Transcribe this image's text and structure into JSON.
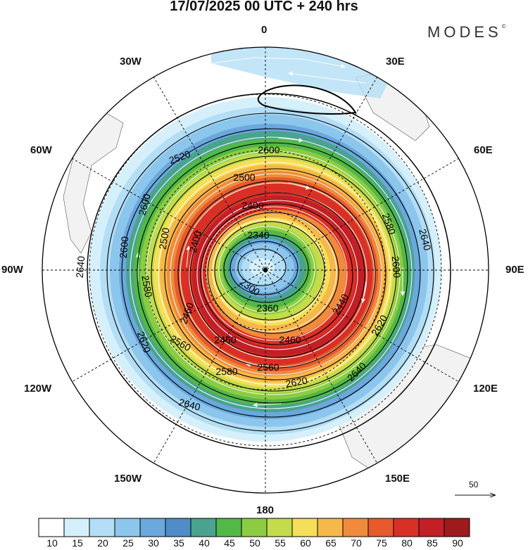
{
  "header": {
    "title": "17/07/2025  00 UTC  + 240 hrs",
    "brand": "MODES",
    "brand_mark": "©"
  },
  "map": {
    "projection": "south polar stereographic",
    "longitude_labels": [
      {
        "id": "0",
        "text": "0"
      },
      {
        "id": "30E",
        "text": "30E"
      },
      {
        "id": "60E",
        "text": "60E"
      },
      {
        "id": "90E",
        "text": "90E"
      },
      {
        "id": "120E",
        "text": "120E"
      },
      {
        "id": "150E",
        "text": "150E"
      },
      {
        "id": "180",
        "text": "180"
      },
      {
        "id": "150W",
        "text": "150W"
      },
      {
        "id": "120W",
        "text": "120W"
      },
      {
        "id": "90W",
        "text": "90W"
      },
      {
        "id": "60W",
        "text": "60W"
      },
      {
        "id": "30W",
        "text": "30W"
      }
    ],
    "contour_labels": [
      "2340",
      "2300",
      "2360",
      "2400",
      "2400",
      "2440",
      "2460",
      "2460",
      "2460",
      "2500",
      "2500",
      "2520",
      "2560",
      "2560",
      "2580",
      "2580",
      "2580",
      "2600",
      "2600",
      "2600",
      "2600",
      "2620",
      "2620",
      "2620",
      "2640",
      "2640",
      "2640",
      "2640"
    ],
    "vector_reference": "50",
    "colors": {
      "land": "#f2f2f2",
      "contour": "#000000",
      "streamline": "#ffffff"
    }
  },
  "colorbar": {
    "labels": [
      "10",
      "15",
      "20",
      "25",
      "30",
      "35",
      "40",
      "45",
      "50",
      "55",
      "60",
      "65",
      "70",
      "75",
      "80",
      "85",
      "90"
    ],
    "colors": [
      "#ffffff",
      "#d6f0fb",
      "#b3def5",
      "#8dc6ec",
      "#6aa8dd",
      "#4f8cc8",
      "#4aa38f",
      "#52b848",
      "#8ccc42",
      "#c3dc4c",
      "#f5df59",
      "#f6b84b",
      "#f08b3b",
      "#e65a2d",
      "#d93025",
      "#c21f26",
      "#9e1a1d"
    ]
  }
}
